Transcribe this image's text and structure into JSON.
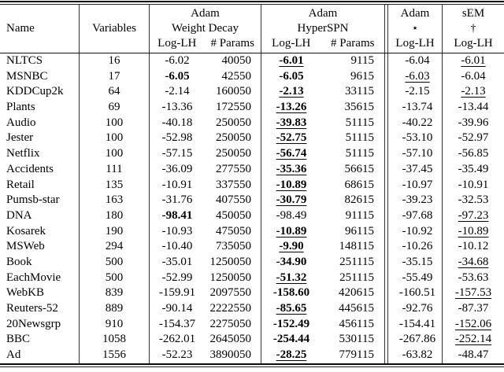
{
  "table": {
    "headers": {
      "name": "Name",
      "variables": "Variables",
      "groups": [
        {
          "line1": "Adam",
          "line2": "Weight Decay",
          "sub": [
            "Log-LH",
            "# Params"
          ]
        },
        {
          "line1": "Adam",
          "line2": "HyperSPN",
          "sub": [
            "Log-LH",
            "# Params"
          ]
        },
        {
          "line1": "Adam",
          "line2": "⋆",
          "sub": [
            "Log-LH"
          ]
        },
        {
          "line1": "sEM",
          "line2": "†",
          "sub": [
            "Log-LH"
          ]
        }
      ]
    },
    "rows": [
      {
        "name": "NLTCS",
        "variables": "16",
        "wd_loglh": "-6.02",
        "wd_params": "40050",
        "hs_loglh": "-6.01",
        "hs_params": "9115",
        "adam_loglh": "-6.04",
        "sem_loglh": "-6.01",
        "styles": {
          "hs_loglh": "bu",
          "sem_loglh": "u"
        }
      },
      {
        "name": "MSNBC",
        "variables": "17",
        "wd_loglh": "-6.05",
        "wd_params": "42550",
        "hs_loglh": "-6.05",
        "hs_params": "9615",
        "adam_loglh": "-6.03",
        "sem_loglh": "-6.04",
        "styles": {
          "wd_loglh": "b",
          "hs_loglh": "b",
          "adam_loglh": "u"
        }
      },
      {
        "name": "KDDCup2k",
        "variables": "64",
        "wd_loglh": "-2.14",
        "wd_params": "160050",
        "hs_loglh": "-2.13",
        "hs_params": "33115",
        "adam_loglh": "-2.15",
        "sem_loglh": "-2.13",
        "styles": {
          "hs_loglh": "bu",
          "sem_loglh": "u"
        }
      },
      {
        "name": "Plants",
        "variables": "69",
        "wd_loglh": "-13.36",
        "wd_params": "172550",
        "hs_loglh": "-13.26",
        "hs_params": "35615",
        "adam_loglh": "-13.74",
        "sem_loglh": "-13.44",
        "styles": {
          "hs_loglh": "bu"
        }
      },
      {
        "name": "Audio",
        "variables": "100",
        "wd_loglh": "-40.18",
        "wd_params": "250050",
        "hs_loglh": "-39.83",
        "hs_params": "51115",
        "adam_loglh": "-40.22",
        "sem_loglh": "-39.96",
        "styles": {
          "hs_loglh": "bu"
        }
      },
      {
        "name": "Jester",
        "variables": "100",
        "wd_loglh": "-52.98",
        "wd_params": "250050",
        "hs_loglh": "-52.75",
        "hs_params": "51115",
        "adam_loglh": "-53.10",
        "sem_loglh": "-52.97",
        "styles": {
          "hs_loglh": "bu"
        }
      },
      {
        "name": "Netflix",
        "variables": "100",
        "wd_loglh": "-57.15",
        "wd_params": "250050",
        "hs_loglh": "-56.74",
        "hs_params": "51115",
        "adam_loglh": "-57.10",
        "sem_loglh": "-56.85",
        "styles": {
          "hs_loglh": "bu"
        }
      },
      {
        "name": "Accidents",
        "variables": "111",
        "wd_loglh": "-36.09",
        "wd_params": "277550",
        "hs_loglh": "-35.36",
        "hs_params": "56615",
        "adam_loglh": "-37.45",
        "sem_loglh": "-35.49",
        "styles": {
          "hs_loglh": "bu"
        }
      },
      {
        "name": "Retail",
        "variables": "135",
        "wd_loglh": "-10.91",
        "wd_params": "337550",
        "hs_loglh": "-10.89",
        "hs_params": "68615",
        "adam_loglh": "-10.97",
        "sem_loglh": "-10.91",
        "styles": {
          "hs_loglh": "bu"
        }
      },
      {
        "name": "Pumsb-star",
        "variables": "163",
        "wd_loglh": "-31.76",
        "wd_params": "407550",
        "hs_loglh": "-30.79",
        "hs_params": "82615",
        "adam_loglh": "-39.23",
        "sem_loglh": "-32.53",
        "styles": {
          "hs_loglh": "bu"
        }
      },
      {
        "name": "DNA",
        "variables": "180",
        "wd_loglh": "-98.41",
        "wd_params": "450050",
        "hs_loglh": "-98.49",
        "hs_params": "91115",
        "adam_loglh": "-97.68",
        "sem_loglh": "-97.23",
        "styles": {
          "wd_loglh": "b",
          "sem_loglh": "u"
        }
      },
      {
        "name": "Kosarek",
        "variables": "190",
        "wd_loglh": "-10.93",
        "wd_params": "475050",
        "hs_loglh": "-10.89",
        "hs_params": "96115",
        "adam_loglh": "-10.92",
        "sem_loglh": "-10.89",
        "styles": {
          "hs_loglh": "bu",
          "sem_loglh": "u"
        }
      },
      {
        "name": "MSWeb",
        "variables": "294",
        "wd_loglh": "-10.40",
        "wd_params": "735050",
        "hs_loglh": "-9.90",
        "hs_params": "148115",
        "adam_loglh": "-10.26",
        "sem_loglh": "-10.12",
        "styles": {
          "hs_loglh": "bu"
        }
      },
      {
        "name": "Book",
        "variables": "500",
        "wd_loglh": "-35.01",
        "wd_params": "1250050",
        "hs_loglh": "-34.90",
        "hs_params": "251115",
        "adam_loglh": "-35.15",
        "sem_loglh": "-34.68",
        "styles": {
          "hs_loglh": "b",
          "sem_loglh": "u"
        }
      },
      {
        "name": "EachMovie",
        "variables": "500",
        "wd_loglh": "-52.99",
        "wd_params": "1250050",
        "hs_loglh": "-51.32",
        "hs_params": "251115",
        "adam_loglh": "-55.49",
        "sem_loglh": "-53.63",
        "styles": {
          "hs_loglh": "bu"
        }
      },
      {
        "name": "WebKB",
        "variables": "839",
        "wd_loglh": "-159.91",
        "wd_params": "2097550",
        "hs_loglh": "-158.60",
        "hs_params": "420615",
        "adam_loglh": "-160.51",
        "sem_loglh": "-157.53",
        "styles": {
          "hs_loglh": "b",
          "sem_loglh": "u"
        }
      },
      {
        "name": "Reuters-52",
        "variables": "889",
        "wd_loglh": "-90.14",
        "wd_params": "2222550",
        "hs_loglh": "-85.65",
        "hs_params": "445615",
        "adam_loglh": "-92.76",
        "sem_loglh": "-87.37",
        "styles": {
          "hs_loglh": "bu"
        }
      },
      {
        "name": "20Newsgrp",
        "variables": "910",
        "wd_loglh": "-154.37",
        "wd_params": "2275050",
        "hs_loglh": "-152.49",
        "hs_params": "456115",
        "adam_loglh": "-154.41",
        "sem_loglh": "-152.06",
        "styles": {
          "hs_loglh": "b",
          "sem_loglh": "u"
        }
      },
      {
        "name": "BBC",
        "variables": "1058",
        "wd_loglh": "-262.01",
        "wd_params": "2645050",
        "hs_loglh": "-254.44",
        "hs_params": "530115",
        "adam_loglh": "-267.86",
        "sem_loglh": "-252.14",
        "styles": {
          "hs_loglh": "b",
          "sem_loglh": "u"
        }
      },
      {
        "name": "Ad",
        "variables": "1556",
        "wd_loglh": "-52.23",
        "wd_params": "3890050",
        "hs_loglh": "-28.25",
        "hs_params": "779115",
        "adam_loglh": "-63.82",
        "sem_loglh": "-48.47",
        "styles": {
          "hs_loglh": "bu"
        }
      }
    ]
  }
}
